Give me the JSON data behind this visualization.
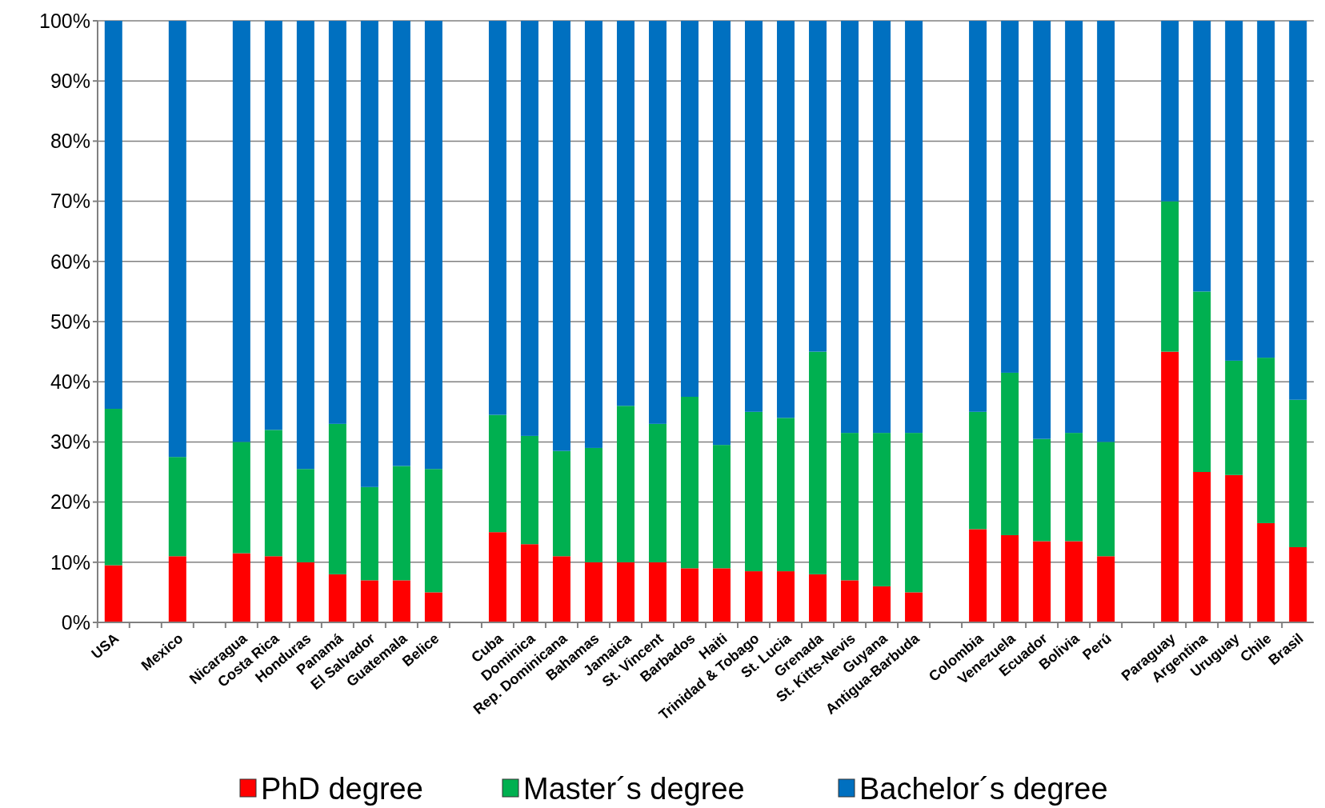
{
  "chart_data": {
    "type": "bar",
    "stacked": true,
    "grid": "y",
    "legend": "bottom",
    "categories": [
      "USA",
      null,
      "Mexico",
      null,
      "Nicaragua",
      "Costa Rica",
      "Honduras",
      "Panamá",
      "El Salvador",
      "Guatemala",
      "Belice",
      null,
      "Cuba",
      "Dominica",
      "Rep. Dominicana",
      "Bahamas",
      "Jamaica",
      "St. Vincent",
      "Barbados",
      "Haiti",
      "Trinidad & Tobago",
      "St. Lucia",
      "Grenada",
      "St. Kitts-Nevis",
      "Guyana",
      "Antigua-Barbuda",
      null,
      "Colombia",
      "Venezuela",
      "Ecuador",
      "Bolivia",
      "Perú",
      null,
      "Paraguay",
      "Argentina",
      "Uruguay",
      "Chile",
      "Brasil"
    ],
    "series": [
      {
        "name": "PhD degree",
        "color": "#ff0000",
        "values": [
          9.5,
          null,
          11,
          null,
          11.5,
          11,
          10,
          8,
          7,
          7,
          5,
          null,
          15,
          13,
          11,
          10,
          10,
          10,
          9,
          9,
          8.5,
          8.5,
          8,
          7,
          6,
          5,
          null,
          15.5,
          14.5,
          13.5,
          13.5,
          11,
          null,
          45,
          25,
          24.5,
          16.5,
          12.5
        ]
      },
      {
        "name": "Master´s degree",
        "color": "#00b050",
        "values": [
          26,
          null,
          16.5,
          null,
          18.5,
          21,
          15.5,
          25,
          15.5,
          19,
          20.5,
          null,
          19.5,
          18,
          17.5,
          19,
          26,
          23,
          28.5,
          20.5,
          26.5,
          25.5,
          37,
          24.5,
          25.5,
          26.5,
          null,
          19.5,
          27,
          17,
          18,
          19,
          null,
          25,
          30,
          19,
          27.5,
          24.5
        ]
      },
      {
        "name": "Bachelor´s degree",
        "color": "#0070c0",
        "values": [
          64.5,
          null,
          72.5,
          null,
          70,
          68,
          74.5,
          67,
          77.5,
          74,
          74.5,
          null,
          65.5,
          69,
          71.5,
          71,
          64,
          67,
          62.5,
          70.5,
          65,
          66,
          55,
          68.5,
          68.5,
          68.5,
          null,
          65,
          58.5,
          69.5,
          68.5,
          70,
          null,
          30,
          45,
          56.5,
          56,
          63
        ]
      }
    ],
    "ylim": [
      0,
      100
    ],
    "yticks": [
      {
        "value": 0,
        "label": "0%"
      },
      {
        "value": 10,
        "label": "10%"
      },
      {
        "value": 20,
        "label": "20%"
      },
      {
        "value": 30,
        "label": "30%"
      },
      {
        "value": 40,
        "label": "40%"
      },
      {
        "value": 50,
        "label": "50%"
      },
      {
        "value": 60,
        "label": "60%"
      },
      {
        "value": 70,
        "label": "70%"
      },
      {
        "value": 80,
        "label": "80%"
      },
      {
        "value": 90,
        "label": "90%"
      },
      {
        "value": 100,
        "label": "100%"
      }
    ]
  }
}
